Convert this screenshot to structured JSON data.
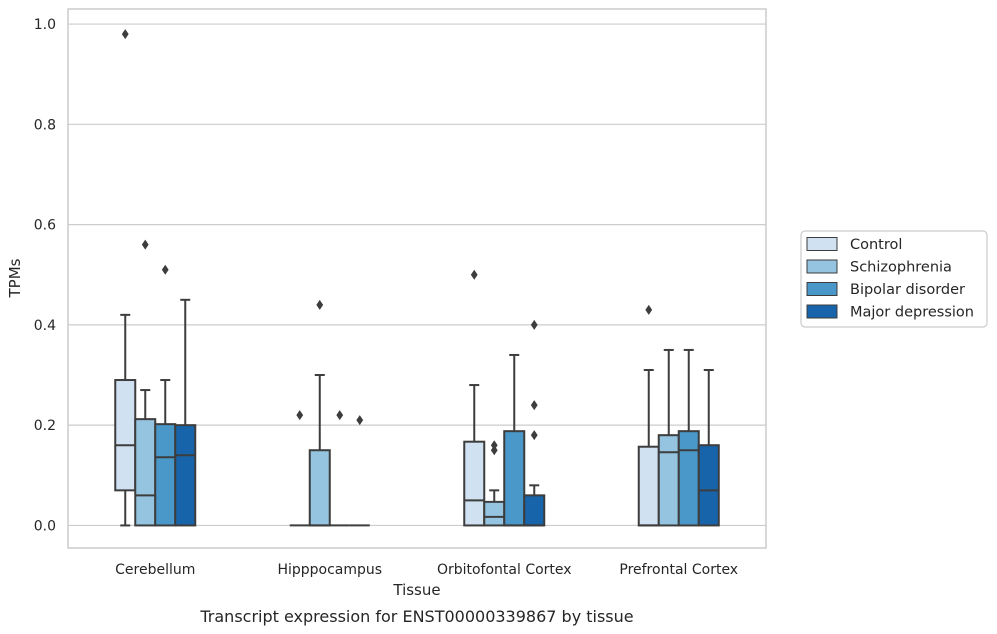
{
  "caption": "Transcript expression for ENST00000339867 by tissue",
  "chart_data": {
    "type": "box",
    "xlabel": "Tissue",
    "ylabel": "TPMs",
    "ylim": [
      -0.045,
      1.03
    ],
    "yticks": [
      0.0,
      0.2,
      0.4,
      0.6,
      0.8,
      1.0
    ],
    "ytick_labels": [
      "0.0",
      "0.2",
      "0.4",
      "0.6",
      "0.8",
      "1.0"
    ],
    "grid": "horizontal",
    "legend_position": "right",
    "categories": [
      "Cerebellum",
      "Hipppocampus",
      "Orbitofontal Cortex",
      "Prefrontal Cortex"
    ],
    "series": [
      {
        "name": "Control",
        "color": "#d0e1f2",
        "boxes": [
          {
            "whisker_low": 0.0,
            "q1": 0.07,
            "median": 0.16,
            "q3": 0.29,
            "whisker_high": 0.42,
            "outliers": [
              0.98
            ]
          },
          {
            "whisker_low": 0.0,
            "q1": 0.0,
            "median": 0.0,
            "q3": 0.0,
            "whisker_high": 0.0,
            "outliers": [
              0.22
            ]
          },
          {
            "whisker_low": 0.0,
            "q1": 0.0,
            "median": 0.05,
            "q3": 0.167,
            "whisker_high": 0.28,
            "outliers": [
              0.5
            ]
          },
          {
            "whisker_low": 0.0,
            "q1": 0.0,
            "median": 0.0,
            "q3": 0.157,
            "whisker_high": 0.31,
            "outliers": [
              0.43
            ]
          }
        ]
      },
      {
        "name": "Schizophrenia",
        "color": "#94c4df",
        "boxes": [
          {
            "whisker_low": 0.0,
            "q1": 0.0,
            "median": 0.06,
            "q3": 0.212,
            "whisker_high": 0.27,
            "outliers": [
              0.56
            ]
          },
          {
            "whisker_low": 0.0,
            "q1": 0.0,
            "median": 0.0,
            "q3": 0.15,
            "whisker_high": 0.3,
            "outliers": [
              0.44
            ]
          },
          {
            "whisker_low": 0.0,
            "q1": 0.0,
            "median": 0.017,
            "q3": 0.047,
            "whisker_high": 0.07,
            "outliers": [
              0.15,
              0.16
            ]
          },
          {
            "whisker_low": 0.0,
            "q1": 0.0,
            "median": 0.146,
            "q3": 0.18,
            "whisker_high": 0.35,
            "outliers": []
          }
        ]
      },
      {
        "name": "Bipolar disorder",
        "color": "#4a98c9",
        "boxes": [
          {
            "whisker_low": 0.0,
            "q1": 0.0,
            "median": 0.136,
            "q3": 0.202,
            "whisker_high": 0.29,
            "outliers": [
              0.51
            ]
          },
          {
            "whisker_low": 0.0,
            "q1": 0.0,
            "median": 0.0,
            "q3": 0.0,
            "whisker_high": 0.0,
            "outliers": [
              0.22
            ]
          },
          {
            "whisker_low": 0.0,
            "q1": 0.0,
            "median": 0.0,
            "q3": 0.188,
            "whisker_high": 0.34,
            "outliers": []
          },
          {
            "whisker_low": 0.0,
            "q1": 0.0,
            "median": 0.15,
            "q3": 0.188,
            "whisker_high": 0.35,
            "outliers": []
          }
        ]
      },
      {
        "name": "Major depression",
        "color": "#1764ab",
        "boxes": [
          {
            "whisker_low": 0.0,
            "q1": 0.0,
            "median": 0.14,
            "q3": 0.2,
            "whisker_high": 0.45,
            "outliers": []
          },
          {
            "whisker_low": 0.0,
            "q1": 0.0,
            "median": 0.0,
            "q3": 0.0,
            "whisker_high": 0.0,
            "outliers": [
              0.21
            ]
          },
          {
            "whisker_low": 0.0,
            "q1": 0.0,
            "median": 0.0,
            "q3": 0.06,
            "whisker_high": 0.08,
            "outliers": [
              0.18,
              0.24,
              0.4
            ]
          },
          {
            "whisker_low": 0.0,
            "q1": 0.0,
            "median": 0.07,
            "q3": 0.16,
            "whisker_high": 0.31,
            "outliers": []
          }
        ]
      }
    ]
  }
}
